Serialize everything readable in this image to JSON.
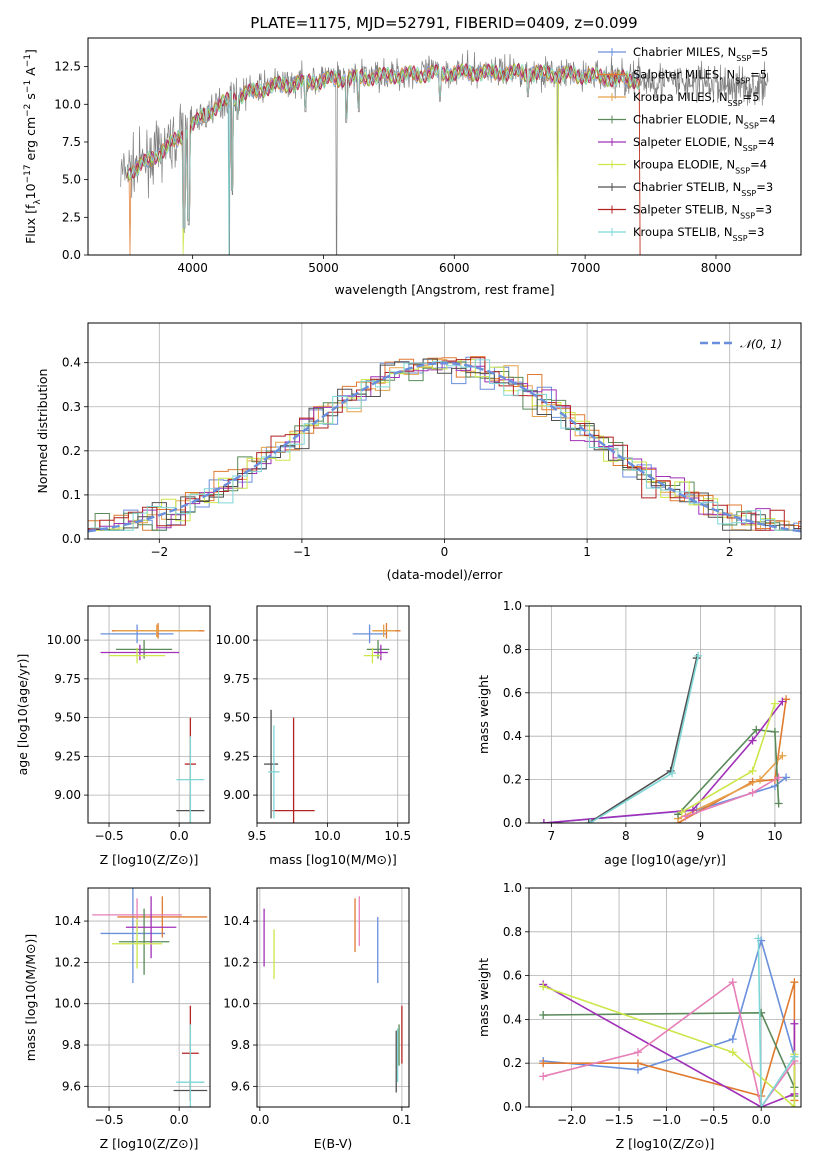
{
  "figure": {
    "title": "PLATE=1175, MJD=52791, FIBERID=0409, z=0.099"
  },
  "colors": {
    "Chabrier MILES": "#6a8fdc",
    "Salpeter MILES": "#e07a2f",
    "Kroupa MILES": "#e6a24a",
    "Chabrier ELODIE": "#5a8a5a",
    "Salpeter ELODIE": "#a030b8",
    "Kroupa ELODIE": "#cde64a",
    "Chabrier STELIB": "#505050",
    "Salpeter STELIB": "#b22222",
    "Kroupa STELIB": "#7fd6d6",
    "normal": "#6a8fdc",
    "pink": "#e67fb8"
  },
  "chart_data": [
    {
      "type": "line",
      "panel": "spectrum",
      "title": "PLATE=1175, MJD=52791, FIBERID=0409, z=0.099",
      "xlabel": "wavelength [Angstrom, rest frame]",
      "ylabel": "Flux [f_λ10^-17 erg cm^-2 s^-1 A^-1]",
      "xlim": [
        3200,
        8650
      ],
      "ylim": [
        0,
        14.4
      ],
      "xticks": [
        "4000",
        "5000",
        "6000",
        "7000",
        "8000"
      ],
      "yticks": [
        "0.0",
        "2.5",
        "5.0",
        "7.5",
        "10.0",
        "12.5"
      ],
      "legend_position": "right",
      "legend": [
        {
          "text": "Chabrier MILES, N",
          "sub": "SSP",
          "tail": "=5"
        },
        {
          "text": "Salpeter MILES, N",
          "sub": "SSP",
          "tail": "=5"
        },
        {
          "text": "Kroupa MILES, N",
          "sub": "SSP",
          "tail": "=5"
        },
        {
          "text": "Chabrier ELODIE, N",
          "sub": "SSP",
          "tail": "=4"
        },
        {
          "text": "Salpeter ELODIE, N",
          "sub": "SSP",
          "tail": "=4"
        },
        {
          "text": "Kroupa ELODIE, N",
          "sub": "SSP",
          "tail": "=4"
        },
        {
          "text": "Chabrier STELIB, N",
          "sub": "SSP",
          "tail": "=3"
        },
        {
          "text": "Salpeter STELIB, N",
          "sub": "SSP",
          "tail": "=3"
        },
        {
          "text": "Kroupa STELIB, N",
          "sub": "SSP",
          "tail": "=3"
        }
      ],
      "continuum": [
        [
          3450,
          5.4
        ],
        [
          3600,
          6.0
        ],
        [
          3800,
          7.2
        ],
        [
          3950,
          8.3
        ],
        [
          4100,
          9.5
        ],
        [
          4300,
          10.5
        ],
        [
          4600,
          11.3
        ],
        [
          5000,
          11.7
        ],
        [
          5500,
          12.0
        ],
        [
          6000,
          12.2
        ],
        [
          6500,
          12.2
        ],
        [
          7000,
          12.0
        ],
        [
          7500,
          11.6
        ],
        [
          8000,
          11.3
        ],
        [
          8400,
          11.1
        ]
      ],
      "observed_range": [
        3450,
        8400
      ],
      "model_range": [
        3500,
        7420
      ]
    },
    {
      "type": "bar",
      "panel": "residuals",
      "xlabel": "(data-model)/error",
      "ylabel": "Normed distribution",
      "xlim": [
        -2.5,
        2.5
      ],
      "ylim": [
        0,
        0.49
      ],
      "xticks": [
        "−2",
        "−1",
        "0",
        "1",
        "2"
      ],
      "yticks": [
        "0.0",
        "0.1",
        "0.2",
        "0.3",
        "0.4"
      ],
      "legend": [
        {
          "text": "𝒩(0, 1)"
        }
      ],
      "bin_width": 0.1
    },
    {
      "type": "scatter",
      "panel": "age_vs_Z",
      "xlabel": "Z [log10(Z/Z⊙)]",
      "ylabel": "age  [log10(age/yr)]",
      "xlim": [
        -0.65,
        0.22
      ],
      "ylim": [
        8.82,
        10.22
      ],
      "xticks": [
        "−0.5",
        "0.0"
      ],
      "yticks": [
        "9.00",
        "9.25",
        "9.50",
        "9.75",
        "10.00"
      ],
      "points": [
        {
          "s": "Chabrier MILES",
          "x": -0.3,
          "xerr": 0.26,
          "y": 10.04,
          "yerr": 0.06
        },
        {
          "s": "Salpeter MILES",
          "x": -0.15,
          "xerr": 0.33,
          "y": 10.06,
          "yerr": 0.05
        },
        {
          "s": "Kroupa MILES",
          "x": -0.16,
          "xerr": 0.3,
          "y": 10.06,
          "yerr": 0.04
        },
        {
          "s": "Chabrier ELODIE",
          "x": -0.25,
          "xerr": 0.2,
          "y": 9.94,
          "yerr": 0.06
        },
        {
          "s": "Salpeter ELODIE",
          "x": -0.28,
          "xerr": 0.28,
          "y": 9.92,
          "yerr": 0.05
        },
        {
          "s": "Kroupa ELODIE",
          "x": -0.3,
          "xerr": 0.2,
          "y": 9.9,
          "yerr": 0.05
        },
        {
          "s": "Chabrier STELIB",
          "x": 0.08,
          "xerr": 0.1,
          "y": 8.9,
          "yerr": 0.1
        },
        {
          "s": "Salpeter STELIB",
          "x": 0.08,
          "xerr": 0.04,
          "y": 9.2,
          "yerr": 0.3
        },
        {
          "s": "Kroupa STELIB",
          "x": 0.08,
          "xerr": 0.1,
          "y": 9.1,
          "yerr": 0.28
        }
      ]
    },
    {
      "type": "scatter",
      "panel": "age_vs_mass",
      "xlabel": "mass [log10(M/M⊙)]",
      "ylabel": "",
      "xlim": [
        9.5,
        10.58
      ],
      "ylim": [
        8.82,
        10.22
      ],
      "xticks": [
        "9.5",
        "10.0",
        "10.5"
      ],
      "yticks": [
        "9.00",
        "9.25",
        "9.50",
        "9.75",
        "10.00"
      ],
      "points": [
        {
          "s": "Chabrier MILES",
          "x": 10.3,
          "xerr": 0.12,
          "y": 10.04,
          "yerr": 0.06
        },
        {
          "s": "Salpeter MILES",
          "x": 10.42,
          "xerr": 0.1,
          "y": 10.06,
          "yerr": 0.05
        },
        {
          "s": "Kroupa MILES",
          "x": 10.4,
          "xerr": 0.08,
          "y": 10.06,
          "yerr": 0.04
        },
        {
          "s": "Chabrier ELODIE",
          "x": 10.36,
          "xerr": 0.08,
          "y": 9.94,
          "yerr": 0.06
        },
        {
          "s": "Salpeter ELODIE",
          "x": 10.38,
          "xerr": 0.05,
          "y": 9.92,
          "yerr": 0.05
        },
        {
          "s": "Kroupa ELODIE",
          "x": 10.32,
          "xerr": 0.06,
          "y": 9.9,
          "yerr": 0.05
        },
        {
          "s": "Chabrier STELIB",
          "x": 9.6,
          "xerr": 0.05,
          "y": 9.2,
          "yerr": 0.35
        },
        {
          "s": "Salpeter STELIB",
          "x": 9.76,
          "xerr": 0.15,
          "y": 8.9,
          "yerr": 0.6
        },
        {
          "s": "Kroupa STELIB",
          "x": 9.62,
          "xerr": 0.04,
          "y": 9.15,
          "yerr": 0.3
        }
      ]
    },
    {
      "type": "line",
      "panel": "weight_vs_age",
      "xlabel": "age  [log10(age/yr)]",
      "ylabel": "mass weight",
      "xlim": [
        6.7,
        10.35
      ],
      "ylim": [
        0,
        1.0
      ],
      "xticks": [
        "7",
        "8",
        "9",
        "10"
      ],
      "yticks": [
        "0.0",
        "0.2",
        "0.4",
        "0.6",
        "0.8",
        "1.0"
      ],
      "series": [
        {
          "s": "Chabrier MILES",
          "x": [
            6.9,
            8.95,
            10.0,
            10.15
          ],
          "y": [
            0.0,
            0.06,
            0.17,
            0.21
          ]
        },
        {
          "s": "Salpeter MILES",
          "x": [
            8.7,
            9.7,
            10.0,
            10.15
          ],
          "y": [
            0.0,
            0.19,
            0.2,
            0.57
          ]
        },
        {
          "s": "Kroupa MILES",
          "x": [
            8.7,
            9.8,
            10.1
          ],
          "y": [
            0.02,
            0.2,
            0.31
          ]
        },
        {
          "s": "Chabrier ELODIE",
          "x": [
            8.7,
            9.75,
            10.0,
            10.05
          ],
          "y": [
            0.04,
            0.43,
            0.42,
            0.09
          ]
        },
        {
          "s": "Salpeter ELODIE",
          "x": [
            6.9,
            8.9,
            9.7,
            10.1
          ],
          "y": [
            0.0,
            0.06,
            0.38,
            0.56
          ]
        },
        {
          "s": "Kroupa ELODIE",
          "x": [
            8.75,
            9.7,
            10.0
          ],
          "y": [
            0.05,
            0.24,
            0.55
          ]
        },
        {
          "s": "Chabrier STELIB",
          "x": [
            7.5,
            8.6,
            8.95
          ],
          "y": [
            0.0,
            0.24,
            0.76
          ]
        },
        {
          "s": "Kroupa STELIB",
          "x": [
            7.52,
            8.62,
            8.97
          ],
          "y": [
            0.0,
            0.23,
            0.77
          ]
        },
        {
          "s": "pink",
          "x": [
            8.8,
            9.7,
            10.05
          ],
          "y": [
            0.03,
            0.14,
            0.21
          ]
        }
      ]
    },
    {
      "type": "scatter",
      "panel": "mass_vs_Z",
      "xlabel": "Z [log10(Z/Z⊙)]",
      "ylabel": "mass [log10(M/M⊙)]",
      "xlim": [
        -0.65,
        0.22
      ],
      "ylim": [
        9.5,
        10.56
      ],
      "xticks": [
        "−0.5",
        "0.0"
      ],
      "yticks": [
        "9.6",
        "9.8",
        "10.0",
        "10.2",
        "10.4"
      ],
      "points": [
        {
          "s": "Chabrier MILES",
          "x": -0.33,
          "xerr": 0.23,
          "y": 10.34,
          "yerr": 0.24
        },
        {
          "s": "Salpeter MILES",
          "x": -0.12,
          "xerr": 0.32,
          "y": 10.42,
          "yerr": 0.1
        },
        {
          "s": "pink",
          "x": -0.3,
          "xerr": 0.32,
          "y": 10.43,
          "yerr": 0.08
        },
        {
          "s": "Chabrier ELODIE",
          "x": -0.25,
          "xerr": 0.18,
          "y": 10.3,
          "yerr": 0.16
        },
        {
          "s": "Salpeter ELODIE",
          "x": -0.2,
          "xerr": 0.18,
          "y": 10.37,
          "yerr": 0.15
        },
        {
          "s": "Kroupa ELODIE",
          "x": -0.3,
          "xerr": 0.18,
          "y": 10.29,
          "yerr": 0.12
        },
        {
          "s": "Chabrier STELIB",
          "x": 0.08,
          "xerr": 0.12,
          "y": 9.58,
          "yerr": 0.05
        },
        {
          "s": "Salpeter STELIB",
          "x": 0.08,
          "xerr": 0.06,
          "y": 9.76,
          "yerr": 0.23
        },
        {
          "s": "Kroupa STELIB",
          "x": 0.08,
          "xerr": 0.1,
          "y": 9.62,
          "yerr": 0.28
        }
      ]
    },
    {
      "type": "scatter",
      "panel": "mass_vs_ebv",
      "xlabel": "E(B-V)",
      "ylabel": "",
      "xlim": [
        -0.002,
        0.105
      ],
      "ylim": [
        9.5,
        10.56
      ],
      "xticks": [
        "0.0",
        "0.1"
      ],
      "yticks": [
        "9.6",
        "9.8",
        "10.0",
        "10.2",
        "10.4"
      ],
      "points": [
        {
          "s": "Salpeter ELODIE",
          "x": 0.003,
          "y": 10.32,
          "yerr": 0.14
        },
        {
          "s": "Kroupa ELODIE",
          "x": 0.01,
          "y": 10.24,
          "yerr": 0.12
        },
        {
          "s": "Salpeter MILES",
          "x": 0.067,
          "y": 10.38,
          "yerr": 0.13
        },
        {
          "s": "pink",
          "x": 0.07,
          "y": 10.4,
          "yerr": 0.12
        },
        {
          "s": "Chabrier MILES",
          "x": 0.083,
          "y": 10.26,
          "yerr": 0.16
        },
        {
          "s": "Chabrier STELIB",
          "x": 0.096,
          "y": 9.72,
          "yerr": 0.15
        },
        {
          "s": "Kroupa STELIB",
          "x": 0.097,
          "y": 9.75,
          "yerr": 0.13
        },
        {
          "s": "Salpeter STELIB",
          "x": 0.1,
          "y": 9.85,
          "yerr": 0.14
        },
        {
          "s": "Chabrier ELODIE",
          "x": 0.098,
          "y": 9.8,
          "yerr": 0.1
        }
      ]
    },
    {
      "type": "line",
      "panel": "weight_vs_Z",
      "xlabel": "Z [log10(Z/Z⊙)]",
      "ylabel": "mass weight",
      "xlim": [
        -2.45,
        0.42
      ],
      "ylim": [
        0,
        1.0
      ],
      "xticks": [
        "−2.0",
        "−1.5",
        "−1.0",
        "−0.5",
        "0.0"
      ],
      "yticks": [
        "0.0",
        "0.2",
        "0.4",
        "0.6",
        "0.8",
        "1.0"
      ],
      "series": [
        {
          "s": "Chabrier MILES",
          "x": [
            -2.3,
            -1.3,
            -0.3,
            0.0,
            0.35
          ],
          "y": [
            0.21,
            0.17,
            0.31,
            0.76,
            0.23
          ]
        },
        {
          "s": "Salpeter MILES",
          "x": [
            -2.3,
            -1.3,
            0.0,
            0.35,
            0.35
          ],
          "y": [
            0.2,
            0.2,
            0.05,
            0.57,
            0.03
          ]
        },
        {
          "s": "Chabrier ELODIE",
          "x": [
            -2.3,
            0.0,
            0.35,
            0.35
          ],
          "y": [
            0.42,
            0.43,
            0.09,
            0.05
          ]
        },
        {
          "s": "Salpeter ELODIE",
          "x": [
            -2.3,
            0.0,
            0.35,
            0.35
          ],
          "y": [
            0.56,
            0.0,
            0.06,
            0.38
          ]
        },
        {
          "s": "Kroupa ELODIE",
          "x": [
            -2.3,
            -0.3,
            0.35,
            0.35
          ],
          "y": [
            0.55,
            0.25,
            0.0,
            0.24
          ]
        },
        {
          "s": "pink",
          "x": [
            -2.3,
            -1.3,
            -0.3,
            0.0,
            0.35
          ],
          "y": [
            0.14,
            0.25,
            0.57,
            0.0,
            0.21
          ]
        },
        {
          "s": "Kroupa STELIB",
          "x": [
            -0.03,
            0.0,
            0.35
          ],
          "y": [
            0.77,
            0.0,
            0.23
          ]
        }
      ]
    }
  ]
}
